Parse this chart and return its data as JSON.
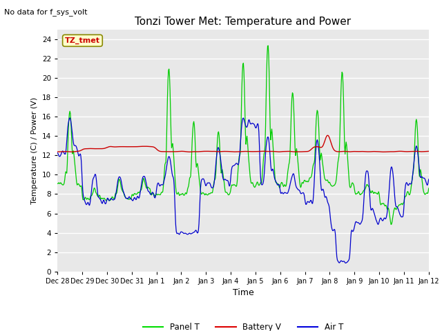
{
  "title": "Tonzi Tower Met: Temperature and Power",
  "no_data_text": "No data for f_sys_volt",
  "xlabel": "Time",
  "ylabel": "Temperature (C) / Power (V)",
  "ylim": [
    0,
    25
  ],
  "yticks": [
    0,
    2,
    4,
    6,
    8,
    10,
    12,
    14,
    16,
    18,
    20,
    22,
    24
  ],
  "xtick_labels": [
    "Dec 28",
    "Dec 29",
    "Dec 30",
    "Dec 31",
    "Jan 1",
    "Jan 2",
    "Jan 3",
    "Jan 4",
    "Jan 5",
    "Jan 6",
    "Jan 7",
    "Jan 8",
    "Jan 9",
    "Jan 10",
    "Jan 11",
    "Jan 12"
  ],
  "legend_labels": [
    "Panel T",
    "Battery V",
    "Air T"
  ],
  "legend_colors": [
    "#00dd00",
    "#dd0000",
    "#0000dd"
  ],
  "annotation_label": "TZ_tmet",
  "annotation_color": "#cc0000",
  "annotation_bg": "#ffffcc",
  "bg_color": "#e8e8e8",
  "grid_color": "white",
  "panel_t_color": "#00cc00",
  "battery_v_color": "#cc0000",
  "air_t_color": "#0000cc"
}
